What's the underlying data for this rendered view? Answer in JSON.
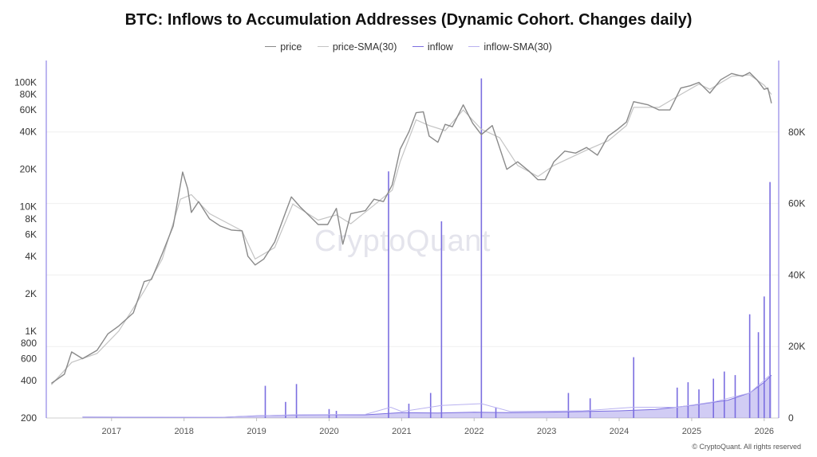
{
  "chart_data": {
    "type": "line",
    "title": "BTC: Inflows to Accumulation Addresses (Dynamic Cohort. Changes daily)",
    "legend": {
      "placement": "top-center",
      "entries": [
        {
          "label": "price",
          "color": "#8a8a8a"
        },
        {
          "label": "price-SMA(30)",
          "color": "#c4c4c4"
        },
        {
          "label": "inflow",
          "color": "#7b6ee0"
        },
        {
          "label": "inflow-SMA(30)",
          "color": "#b9b2f0"
        }
      ]
    },
    "x_ticks": [
      "2017",
      "2018",
      "2019",
      "2020",
      "2021",
      "2022",
      "2023",
      "2024",
      "2025",
      "2026"
    ],
    "x_range": [
      2016.1,
      2026.2
    ],
    "y_left": {
      "scale": "log",
      "range": [
        200,
        150000
      ],
      "ticks": [
        {
          "value": 200,
          "label": "200"
        },
        {
          "value": 400,
          "label": "400"
        },
        {
          "value": 600,
          "label": "600"
        },
        {
          "value": 800,
          "label": "800"
        },
        {
          "value": 1000,
          "label": "1K"
        },
        {
          "value": 2000,
          "label": "2K"
        },
        {
          "value": 4000,
          "label": "4K"
        },
        {
          "value": 6000,
          "label": "6K"
        },
        {
          "value": 8000,
          "label": "8K"
        },
        {
          "value": 10000,
          "label": "10K"
        },
        {
          "value": 20000,
          "label": "20K"
        },
        {
          "value": 40000,
          "label": "40K"
        },
        {
          "value": 60000,
          "label": "60K"
        },
        {
          "value": 80000,
          "label": "80K"
        },
        {
          "value": 100000,
          "label": "100K"
        }
      ]
    },
    "y_right": {
      "scale": "linear",
      "range": [
        0,
        100000
      ],
      "ticks": [
        {
          "value": 0,
          "label": "0"
        },
        {
          "value": 20000,
          "label": "20K"
        },
        {
          "value": 40000,
          "label": "40K"
        },
        {
          "value": 60000,
          "label": "60K"
        },
        {
          "value": 80000,
          "label": "80K"
        }
      ]
    },
    "grid": true,
    "series": [
      {
        "name": "price",
        "axis": "left",
        "points": [
          [
            2016.17,
            380
          ],
          [
            2016.35,
            450
          ],
          [
            2016.45,
            680
          ],
          [
            2016.6,
            600
          ],
          [
            2016.8,
            700
          ],
          [
            2016.95,
            950
          ],
          [
            2017.1,
            1100
          ],
          [
            2017.3,
            1400
          ],
          [
            2017.45,
            2500
          ],
          [
            2017.55,
            2600
          ],
          [
            2017.7,
            4200
          ],
          [
            2017.85,
            7000
          ],
          [
            2017.95,
            15000
          ],
          [
            2017.98,
            19000
          ],
          [
            2018.05,
            14000
          ],
          [
            2018.1,
            9000
          ],
          [
            2018.2,
            11000
          ],
          [
            2018.35,
            8000
          ],
          [
            2018.5,
            7000
          ],
          [
            2018.65,
            6500
          ],
          [
            2018.8,
            6400
          ],
          [
            2018.88,
            4000
          ],
          [
            2018.98,
            3400
          ],
          [
            2019.1,
            3800
          ],
          [
            2019.25,
            5200
          ],
          [
            2019.4,
            9000
          ],
          [
            2019.48,
            12000
          ],
          [
            2019.6,
            10000
          ],
          [
            2019.75,
            8200
          ],
          [
            2019.85,
            7200
          ],
          [
            2019.98,
            7200
          ],
          [
            2020.1,
            9700
          ],
          [
            2020.19,
            5000
          ],
          [
            2020.3,
            8800
          ],
          [
            2020.5,
            9300
          ],
          [
            2020.62,
            11500
          ],
          [
            2020.75,
            11000
          ],
          [
            2020.87,
            15000
          ],
          [
            2020.98,
            29000
          ],
          [
            2021.1,
            40000
          ],
          [
            2021.2,
            57000
          ],
          [
            2021.3,
            58000
          ],
          [
            2021.38,
            37000
          ],
          [
            2021.5,
            33000
          ],
          [
            2021.6,
            46000
          ],
          [
            2021.7,
            44000
          ],
          [
            2021.85,
            66000
          ],
          [
            2021.98,
            47000
          ],
          [
            2022.1,
            38000
          ],
          [
            2022.25,
            45000
          ],
          [
            2022.35,
            30000
          ],
          [
            2022.45,
            20000
          ],
          [
            2022.6,
            23000
          ],
          [
            2022.75,
            19500
          ],
          [
            2022.88,
            16500
          ],
          [
            2022.98,
            16500
          ],
          [
            2023.1,
            23000
          ],
          [
            2023.25,
            28000
          ],
          [
            2023.4,
            27000
          ],
          [
            2023.55,
            30000
          ],
          [
            2023.7,
            26000
          ],
          [
            2023.85,
            37000
          ],
          [
            2023.98,
            42000
          ],
          [
            2024.1,
            48000
          ],
          [
            2024.2,
            70000
          ],
          [
            2024.4,
            66000
          ],
          [
            2024.55,
            60000
          ],
          [
            2024.7,
            60000
          ],
          [
            2024.85,
            90000
          ],
          [
            2024.98,
            94000
          ],
          [
            2025.1,
            100000
          ],
          [
            2025.25,
            82000
          ],
          [
            2025.4,
            105000
          ],
          [
            2025.55,
            118000
          ],
          [
            2025.7,
            112000
          ],
          [
            2025.8,
            120000
          ],
          [
            2025.9,
            105000
          ],
          [
            2026.0,
            88000
          ],
          [
            2026.05,
            90000
          ],
          [
            2026.1,
            68000
          ]
        ]
      },
      {
        "name": "price-SMA(30)",
        "axis": "left",
        "points": [
          [
            2016.17,
            370
          ],
          [
            2016.45,
            560
          ],
          [
            2016.8,
            660
          ],
          [
            2017.1,
            1000
          ],
          [
            2017.45,
            2100
          ],
          [
            2017.7,
            3800
          ],
          [
            2017.95,
            11500
          ],
          [
            2018.1,
            12500
          ],
          [
            2018.35,
            8800
          ],
          [
            2018.8,
            6400
          ],
          [
            2018.98,
            3800
          ],
          [
            2019.25,
            4700
          ],
          [
            2019.5,
            10500
          ],
          [
            2019.85,
            7800
          ],
          [
            2020.1,
            8600
          ],
          [
            2020.3,
            7300
          ],
          [
            2020.62,
            10300
          ],
          [
            2020.87,
            13600
          ],
          [
            2020.98,
            23000
          ],
          [
            2021.2,
            50000
          ],
          [
            2021.38,
            45000
          ],
          [
            2021.6,
            41000
          ],
          [
            2021.85,
            60000
          ],
          [
            2022.1,
            42000
          ],
          [
            2022.35,
            36000
          ],
          [
            2022.6,
            21500
          ],
          [
            2022.88,
            17500
          ],
          [
            2023.1,
            21500
          ],
          [
            2023.55,
            28500
          ],
          [
            2023.85,
            34000
          ],
          [
            2024.1,
            45000
          ],
          [
            2024.2,
            63000
          ],
          [
            2024.55,
            63000
          ],
          [
            2024.85,
            80000
          ],
          [
            2025.1,
            97000
          ],
          [
            2025.25,
            88000
          ],
          [
            2025.55,
            112000
          ],
          [
            2025.8,
            115000
          ],
          [
            2026.0,
            95000
          ],
          [
            2026.1,
            80000
          ]
        ]
      },
      {
        "name": "inflow",
        "axis": "right",
        "baseline_points": [
          [
            2016.6,
            300
          ],
          [
            2017.5,
            200
          ],
          [
            2018.5,
            150
          ],
          [
            2019.0,
            600
          ],
          [
            2019.5,
            800
          ],
          [
            2020.0,
            900
          ],
          [
            2020.5,
            900
          ],
          [
            2021.0,
            1500
          ],
          [
            2021.5,
            1400
          ],
          [
            2022.0,
            1600
          ],
          [
            2022.5,
            1500
          ],
          [
            2023.0,
            1600
          ],
          [
            2023.5,
            1800
          ],
          [
            2024.0,
            2000
          ],
          [
            2024.5,
            2400
          ],
          [
            2025.0,
            3500
          ],
          [
            2025.5,
            5000
          ],
          [
            2025.8,
            7000
          ],
          [
            2026.0,
            10000
          ],
          [
            2026.1,
            12000
          ]
        ],
        "spikes": [
          [
            2019.12,
            9000
          ],
          [
            2019.4,
            4500
          ],
          [
            2019.55,
            9500
          ],
          [
            2020.0,
            2500
          ],
          [
            2020.1,
            2000
          ],
          [
            2020.82,
            69000
          ],
          [
            2021.1,
            4000
          ],
          [
            2021.4,
            7000
          ],
          [
            2021.55,
            55000
          ],
          [
            2022.1,
            95000
          ],
          [
            2022.3,
            3000
          ],
          [
            2023.3,
            7000
          ],
          [
            2023.6,
            5500
          ],
          [
            2024.2,
            17000
          ],
          [
            2024.8,
            8500
          ],
          [
            2024.95,
            10000
          ],
          [
            2025.1,
            8000
          ],
          [
            2025.3,
            11000
          ],
          [
            2025.45,
            13000
          ],
          [
            2025.6,
            12000
          ],
          [
            2025.8,
            29000
          ],
          [
            2025.92,
            24000
          ],
          [
            2026.0,
            34000
          ],
          [
            2026.08,
            66000
          ]
        ]
      },
      {
        "name": "inflow-SMA(30)",
        "axis": "right",
        "points": [
          [
            2016.6,
            300
          ],
          [
            2018.5,
            200
          ],
          [
            2019.5,
            900
          ],
          [
            2020.5,
            1000
          ],
          [
            2020.85,
            3000
          ],
          [
            2021.0,
            1800
          ],
          [
            2021.55,
            3500
          ],
          [
            2022.1,
            4000
          ],
          [
            2022.5,
            1800
          ],
          [
            2023.5,
            2000
          ],
          [
            2024.2,
            3000
          ],
          [
            2024.8,
            3000
          ],
          [
            2025.3,
            4500
          ],
          [
            2025.8,
            7000
          ],
          [
            2026.08,
            12000
          ]
        ]
      }
    ]
  },
  "watermark": "CryptoQuant",
  "copyright": "© CryptoQuant. All rights reserved"
}
